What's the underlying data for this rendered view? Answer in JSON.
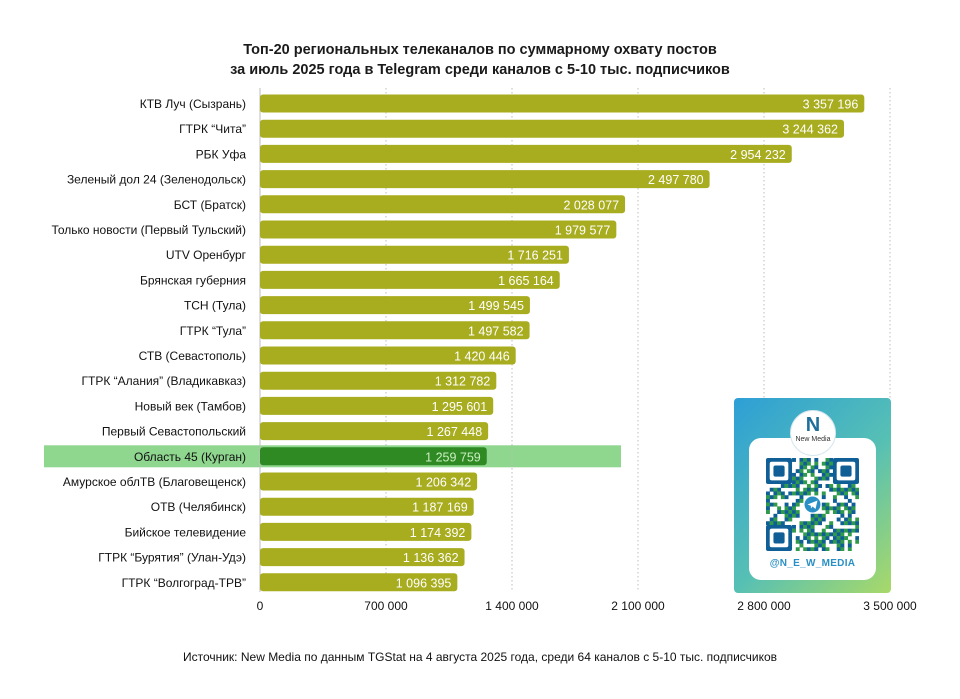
{
  "chart_data": {
    "type": "bar",
    "orientation": "horizontal",
    "title": [
      "Топ-20 региональных телеканалов по суммарному охвату постов",
      "за июль 2025 года в Telegram среди каналов с 5-10 тыс. подписчиков"
    ],
    "categories": [
      "КТВ Луч (Сызрань)",
      "ГТРК “Чита”",
      "РБК Уфа",
      "Зеленый дол 24 (Зеленодольск)",
      "БСТ (Братск)",
      "Только новости (Первый Тульский)",
      "UTV Оренбург",
      "Брянская губерния",
      "ТСН (Тула)",
      "ГТРК “Тула”",
      "СТВ (Севастополь)",
      "ГТРК “Алания” (Владикавказ)",
      "Новый век (Тамбов)",
      "Первый Севастопольский",
      "Область 45 (Курган)",
      "Амурское облТВ (Благовещенск)",
      "ОТВ (Челябинск)",
      "Бийское телевидение",
      "ГТРК “Бурятия” (Улан-Удэ)",
      "ГТРК “Волгоград-ТРВ”"
    ],
    "values": [
      3357196,
      3244362,
      2954232,
      2497780,
      2028077,
      1979577,
      1716251,
      1665164,
      1499545,
      1497582,
      1420446,
      1312782,
      1295601,
      1267448,
      1259759,
      1206342,
      1187169,
      1174392,
      1136362,
      1096395
    ],
    "value_labels": [
      "3 357 196",
      "3 244 362",
      "2 954 232",
      "2 497 780",
      "2 028 077",
      "1 979 577",
      "1 716 251",
      "1 665 164",
      "1 499 545",
      "1 497 582",
      "1 420 446",
      "1 312 782",
      "1 295 601",
      "1 267 448",
      "1 259 759",
      "1 206 342",
      "1 187 169",
      "1 174 392",
      "1 136 362",
      "1 096 395"
    ],
    "xlim": [
      0,
      3500000
    ],
    "xticks": [
      0,
      700000,
      1400000,
      2100000,
      2800000,
      3500000
    ],
    "xtick_labels": [
      "0",
      "700 000",
      "1 400 000",
      "2 100 000",
      "2 800 000",
      "3 500 000"
    ],
    "grid": "vertical dotted",
    "highlighted_category": "Область 45 (Курган)",
    "colors": {
      "bar": "#a8ac1f",
      "bar_highlight": "#2f8a23",
      "highlight_band": "#8fd68f"
    }
  },
  "source": "Источник: New Media по данным TGStat на 4 августа 2025 года, среди 64 каналов с 5-10 тыс. подписчиков",
  "qr_card": {
    "logo_mark": "N",
    "logo_text": "New Media",
    "handle": "@N_E_W_MEDIA",
    "icon": "qr-code-icon"
  }
}
